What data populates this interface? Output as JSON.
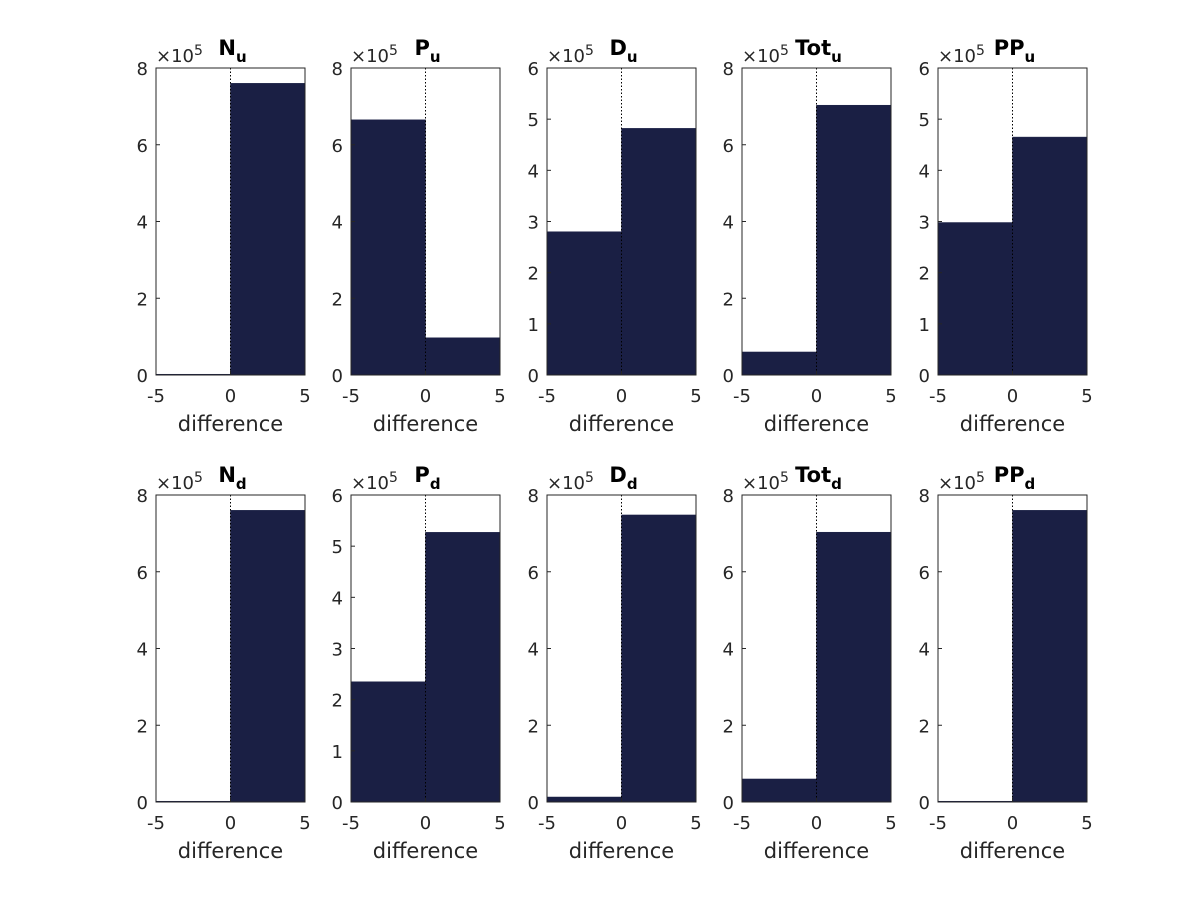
{
  "figure": {
    "background": "#ffffff",
    "bar_color": "#1a1f44",
    "axis_color": "#262626"
  },
  "chart_data": [
    {
      "type": "bar",
      "title": "N",
      "title_sub": "u",
      "xlabel": "difference",
      "ylabel": "",
      "xlim": [
        -5,
        5
      ],
      "xticks": [
        "-5",
        "0",
        "5"
      ],
      "ylim": [
        0,
        8
      ],
      "yticks": [
        "0",
        "2",
        "4",
        "6",
        "8"
      ],
      "multiplier": "×10",
      "multiplier_exp": "5",
      "bins": [
        {
          "from": -5,
          "to": 0,
          "value": 0.02
        },
        {
          "from": 0,
          "to": 5,
          "value": 7.6
        }
      ]
    },
    {
      "type": "bar",
      "title": "P",
      "title_sub": "u",
      "xlabel": "difference",
      "ylabel": "",
      "xlim": [
        -5,
        5
      ],
      "xticks": [
        "-5",
        "0",
        "5"
      ],
      "ylim": [
        0,
        8
      ],
      "yticks": [
        "0",
        "2",
        "4",
        "6",
        "8"
      ],
      "multiplier": "×10",
      "multiplier_exp": "5",
      "bins": [
        {
          "from": -5,
          "to": 0,
          "value": 6.65
        },
        {
          "from": 0,
          "to": 5,
          "value": 0.97
        }
      ]
    },
    {
      "type": "bar",
      "title": "D",
      "title_sub": "u",
      "xlabel": "difference",
      "ylabel": "",
      "xlim": [
        -5,
        5
      ],
      "xticks": [
        "-5",
        "0",
        "5"
      ],
      "ylim": [
        0,
        6
      ],
      "yticks": [
        "0",
        "1",
        "2",
        "3",
        "4",
        "5",
        "6"
      ],
      "multiplier": "×10",
      "multiplier_exp": "5",
      "bins": [
        {
          "from": -5,
          "to": 0,
          "value": 2.8
        },
        {
          "from": 0,
          "to": 5,
          "value": 4.82
        }
      ]
    },
    {
      "type": "bar",
      "title": "Tot",
      "title_sub": "u",
      "xlabel": "difference",
      "ylabel": "",
      "xlim": [
        -5,
        5
      ],
      "xticks": [
        "-5",
        "0",
        "5"
      ],
      "ylim": [
        0,
        8
      ],
      "yticks": [
        "0",
        "2",
        "4",
        "6",
        "8"
      ],
      "multiplier": "×10",
      "multiplier_exp": "5",
      "bins": [
        {
          "from": -5,
          "to": 0,
          "value": 0.6
        },
        {
          "from": 0,
          "to": 5,
          "value": 7.03
        }
      ]
    },
    {
      "type": "bar",
      "title": "PP",
      "title_sub": "u",
      "xlabel": "difference",
      "ylabel": "",
      "xlim": [
        -5,
        5
      ],
      "xticks": [
        "-5",
        "0",
        "5"
      ],
      "ylim": [
        0,
        6
      ],
      "yticks": [
        "0",
        "1",
        "2",
        "3",
        "4",
        "5",
        "6"
      ],
      "multiplier": "×10",
      "multiplier_exp": "5",
      "bins": [
        {
          "from": -5,
          "to": 0,
          "value": 2.98
        },
        {
          "from": 0,
          "to": 5,
          "value": 4.65
        }
      ]
    },
    {
      "type": "bar",
      "title": "N",
      "title_sub": "d",
      "xlabel": "difference",
      "ylabel": "",
      "xlim": [
        -5,
        5
      ],
      "xticks": [
        "-5",
        "0",
        "5"
      ],
      "ylim": [
        0,
        8
      ],
      "yticks": [
        "0",
        "2",
        "4",
        "6",
        "8"
      ],
      "multiplier": "×10",
      "multiplier_exp": "5",
      "bins": [
        {
          "from": -5,
          "to": 0,
          "value": 0.02
        },
        {
          "from": 0,
          "to": 5,
          "value": 7.6
        }
      ]
    },
    {
      "type": "bar",
      "title": "P",
      "title_sub": "d",
      "xlabel": "difference",
      "ylabel": "",
      "xlim": [
        -5,
        5
      ],
      "xticks": [
        "-5",
        "0",
        "5"
      ],
      "ylim": [
        0,
        6
      ],
      "yticks": [
        "0",
        "1",
        "2",
        "3",
        "4",
        "5",
        "6"
      ],
      "multiplier": "×10",
      "multiplier_exp": "5",
      "bins": [
        {
          "from": -5,
          "to": 0,
          "value": 2.35
        },
        {
          "from": 0,
          "to": 5,
          "value": 5.27
        }
      ]
    },
    {
      "type": "bar",
      "title": "D",
      "title_sub": "d",
      "xlabel": "difference",
      "ylabel": "",
      "xlim": [
        -5,
        5
      ],
      "xticks": [
        "-5",
        "0",
        "5"
      ],
      "ylim": [
        0,
        8
      ],
      "yticks": [
        "0",
        "2",
        "4",
        "6",
        "8"
      ],
      "multiplier": "×10",
      "multiplier_exp": "5",
      "bins": [
        {
          "from": -5,
          "to": 0,
          "value": 0.13
        },
        {
          "from": 0,
          "to": 5,
          "value": 7.48
        }
      ]
    },
    {
      "type": "bar",
      "title": "Tot",
      "title_sub": "d",
      "xlabel": "difference",
      "ylabel": "",
      "xlim": [
        -5,
        5
      ],
      "xticks": [
        "-5",
        "0",
        "5"
      ],
      "ylim": [
        0,
        8
      ],
      "yticks": [
        "0",
        "2",
        "4",
        "6",
        "8"
      ],
      "multiplier": "×10",
      "multiplier_exp": "5",
      "bins": [
        {
          "from": -5,
          "to": 0,
          "value": 0.6
        },
        {
          "from": 0,
          "to": 5,
          "value": 7.03
        }
      ]
    },
    {
      "type": "bar",
      "title": "PP",
      "title_sub": "d",
      "xlabel": "difference",
      "ylabel": "",
      "xlim": [
        -5,
        5
      ],
      "xticks": [
        "-5",
        "0",
        "5"
      ],
      "ylim": [
        0,
        8
      ],
      "yticks": [
        "0",
        "2",
        "4",
        "6",
        "8"
      ],
      "multiplier": "×10",
      "multiplier_exp": "5",
      "bins": [
        {
          "from": -5,
          "to": 0,
          "value": 0.02
        },
        {
          "from": 0,
          "to": 5,
          "value": 7.6
        }
      ]
    }
  ]
}
